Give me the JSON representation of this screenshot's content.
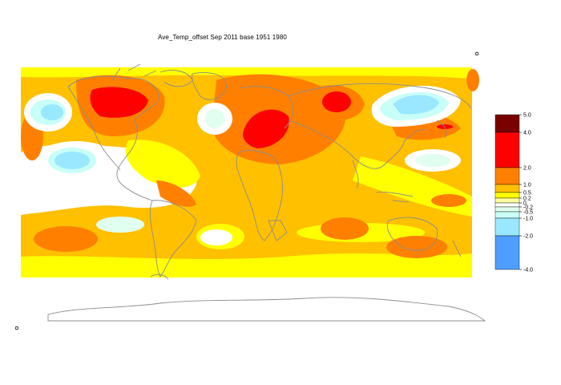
{
  "title": "Ave_Temp_offset Sep 2011  base 1951 1980",
  "legend": {
    "bands": [
      {
        "from": 4.0,
        "to": 5.0,
        "color": "#7a0000"
      },
      {
        "from": 2.0,
        "to": 4.0,
        "color": "#ff0000"
      },
      {
        "from": 1.0,
        "to": 2.0,
        "color": "#ff8000"
      },
      {
        "from": 0.5,
        "to": 1.0,
        "color": "#ffc000"
      },
      {
        "from": 0.2,
        "to": 0.5,
        "color": "#ffff00"
      },
      {
        "from": 0.0,
        "to": 0.2,
        "color": "#ffffa0"
      },
      {
        "from": -0.2,
        "to": 0.0,
        "color": "#ffffff"
      },
      {
        "from": -0.5,
        "to": -0.2,
        "color": "#e0fff0"
      },
      {
        "from": -1.0,
        "to": -0.5,
        "color": "#c8fff8"
      },
      {
        "from": -2.0,
        "to": -1.0,
        "color": "#99e8ff"
      },
      {
        "from": -4.0,
        "to": -2.0,
        "color": "#4f9eff"
      }
    ],
    "tick_labels": [
      "5.0",
      "4.0",
      "2.0",
      "1.0",
      "0.5",
      "0.2",
      "0",
      "-0.2",
      "-0.5",
      "-1.0",
      "-2.0",
      "-4.0"
    ]
  },
  "colors": {
    "coastline": "#8c8c8c",
    "ocean_baseline": "#ffc000"
  }
}
